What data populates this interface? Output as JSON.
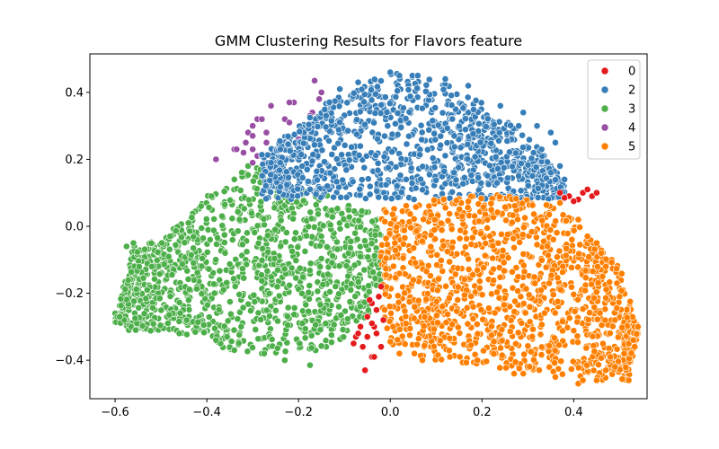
{
  "chart_data": {
    "type": "scatter",
    "title": "GMM Clustering Results for Flavors feature",
    "xlabel": "",
    "ylabel": "",
    "xlim": [
      -0.655,
      0.56
    ],
    "ylim": [
      -0.515,
      0.515
    ],
    "xticks": [
      -0.6,
      -0.4,
      -0.2,
      0.0,
      0.2,
      0.4
    ],
    "xtick_labels": [
      "−0.6",
      "−0.4",
      "−0.2",
      "0.0",
      "0.2",
      "0.4"
    ],
    "yticks": [
      -0.4,
      -0.2,
      0.0,
      0.2,
      0.4
    ],
    "ytick_labels": [
      "−0.4",
      "−0.2",
      "0.0",
      "0.2",
      "0.4"
    ],
    "grid": false,
    "legend": {
      "placement": "top-right",
      "entries": [
        "0",
        "2",
        "3",
        "4",
        "5"
      ]
    },
    "series": [
      {
        "name": "0",
        "color": "#e41a1c",
        "points": [
          [
            -0.055,
            -0.43
          ],
          [
            -0.04,
            -0.39
          ],
          [
            -0.035,
            -0.39
          ],
          [
            -0.02,
            -0.36
          ],
          [
            -0.06,
            -0.36
          ],
          [
            -0.075,
            -0.33
          ],
          [
            -0.035,
            -0.3
          ],
          [
            -0.04,
            -0.29
          ],
          [
            -0.05,
            -0.27
          ],
          [
            -0.03,
            -0.25
          ],
          [
            -0.04,
            -0.23
          ],
          [
            -0.025,
            -0.21
          ],
          [
            -0.045,
            -0.22
          ],
          [
            -0.065,
            -0.3
          ],
          [
            -0.03,
            -0.32
          ],
          [
            -0.08,
            -0.35
          ],
          [
            -0.015,
            -0.28
          ],
          [
            -0.02,
            -0.18
          ],
          [
            -0.05,
            -0.33
          ],
          [
            -0.07,
            -0.32
          ],
          [
            0.37,
            0.1
          ],
          [
            0.39,
            0.09
          ],
          [
            0.41,
            0.08
          ],
          [
            0.42,
            0.1
          ],
          [
            0.44,
            0.09
          ],
          [
            0.45,
            0.1
          ],
          [
            0.43,
            0.11
          ],
          [
            0.38,
            0.085
          ],
          [
            0.4,
            0.075
          ]
        ]
      },
      {
        "name": "2",
        "color": "#377eb8",
        "region": {
          "x_range": [
            -0.28,
            0.38
          ],
          "y_top_curve": [
            [
              -0.28,
              0.22
            ],
            [
              -0.2,
              0.3
            ],
            [
              -0.15,
              0.36
            ],
            [
              -0.05,
              0.43
            ],
            [
              0.0,
              0.46
            ],
            [
              0.1,
              0.44
            ],
            [
              0.2,
              0.37
            ],
            [
              0.3,
              0.27
            ],
            [
              0.36,
              0.17
            ],
            [
              0.38,
              0.12
            ]
          ],
          "y_bottom": 0.08,
          "count": 1100,
          "seed": 202
        },
        "points": [
          [
            0.0,
            0.46
          ],
          [
            0.02,
            0.45
          ],
          [
            0.12,
            0.44
          ],
          [
            0.17,
            0.42
          ],
          [
            0.24,
            0.36
          ],
          [
            0.29,
            0.34
          ],
          [
            0.32,
            0.3
          ],
          [
            0.35,
            0.28
          ],
          [
            0.36,
            0.25
          ],
          [
            0.33,
            0.23
          ],
          [
            0.37,
            0.18
          ],
          [
            0.35,
            0.16
          ],
          [
            0.38,
            0.14
          ],
          [
            0.31,
            0.15
          ],
          [
            -0.14,
            0.33
          ],
          [
            -0.11,
            0.41
          ],
          [
            -0.07,
            0.43
          ],
          [
            0.06,
            0.45
          ],
          [
            0.28,
            0.3
          ],
          [
            -0.24,
            0.19
          ],
          [
            -0.26,
            0.19
          ]
        ]
      },
      {
        "name": "3",
        "color": "#4daf4a",
        "region": {
          "x_range": [
            -0.6,
            -0.02
          ],
          "y_top_curve": [
            [
              -0.6,
              -0.28
            ],
            [
              -0.56,
              -0.06
            ],
            [
              -0.5,
              -0.04
            ],
            [
              -0.45,
              0.02
            ],
            [
              -0.4,
              0.09
            ],
            [
              -0.35,
              0.14
            ],
            [
              -0.3,
              0.18
            ],
            [
              -0.2,
              0.13
            ],
            [
              -0.1,
              0.07
            ],
            [
              -0.02,
              0.03
            ]
          ],
          "y_bottom_curve": [
            [
              -0.6,
              -0.29
            ],
            [
              -0.55,
              -0.31
            ],
            [
              -0.45,
              -0.32
            ],
            [
              -0.35,
              -0.37
            ],
            [
              -0.25,
              -0.38
            ],
            [
              -0.15,
              -0.37
            ],
            [
              -0.1,
              -0.33
            ],
            [
              -0.05,
              -0.27
            ],
            [
              -0.02,
              -0.18
            ]
          ],
          "count": 1250,
          "seed": 303
        },
        "points": [
          [
            -0.6,
            -0.26
          ],
          [
            -0.595,
            -0.27
          ],
          [
            -0.58,
            -0.28
          ],
          [
            -0.57,
            -0.31
          ],
          [
            -0.565,
            -0.3
          ],
          [
            -0.555,
            -0.31
          ],
          [
            -0.59,
            -0.27
          ],
          [
            -0.575,
            -0.06
          ],
          [
            -0.56,
            -0.05
          ],
          [
            -0.37,
            -0.35
          ],
          [
            -0.34,
            -0.37
          ],
          [
            -0.28,
            -0.38
          ],
          [
            -0.275,
            -0.38
          ],
          [
            -0.23,
            -0.4
          ],
          [
            -0.175,
            -0.415
          ],
          [
            -0.31,
            0.18
          ],
          [
            -0.34,
            0.14
          ],
          [
            -0.39,
            0.09
          ],
          [
            -0.44,
            0.01
          ],
          [
            -0.48,
            -0.03
          ],
          [
            -0.52,
            -0.12
          ],
          [
            -0.53,
            -0.19
          ],
          [
            -0.38,
            -0.34
          ],
          [
            -0.46,
            -0.32
          ]
        ]
      },
      {
        "name": "4",
        "color": "#984ea3",
        "points": [
          [
            -0.165,
            0.435
          ],
          [
            -0.15,
            0.4
          ],
          [
            -0.155,
            0.38
          ],
          [
            -0.21,
            0.37
          ],
          [
            -0.22,
            0.37
          ],
          [
            -0.26,
            0.36
          ],
          [
            -0.29,
            0.32
          ],
          [
            -0.28,
            0.32
          ],
          [
            -0.23,
            0.32
          ],
          [
            -0.22,
            0.31
          ],
          [
            -0.17,
            0.34
          ],
          [
            -0.175,
            0.33
          ],
          [
            -0.16,
            0.32
          ],
          [
            -0.3,
            0.3
          ],
          [
            -0.31,
            0.28
          ],
          [
            -0.27,
            0.28
          ],
          [
            -0.19,
            0.27
          ],
          [
            -0.3,
            0.27
          ],
          [
            -0.315,
            0.25
          ],
          [
            -0.27,
            0.25
          ],
          [
            -0.23,
            0.25
          ],
          [
            -0.22,
            0.24
          ],
          [
            -0.34,
            0.23
          ],
          [
            -0.335,
            0.23
          ],
          [
            -0.3,
            0.23
          ],
          [
            -0.25,
            0.22
          ],
          [
            -0.29,
            0.21
          ],
          [
            -0.28,
            0.21
          ],
          [
            -0.26,
            0.21
          ],
          [
            -0.3,
            0.19
          ],
          [
            -0.27,
            0.19
          ],
          [
            -0.38,
            0.2
          ],
          [
            -0.18,
            0.29
          ],
          [
            -0.165,
            0.3
          ],
          [
            -0.2,
            0.26
          ],
          [
            -0.32,
            0.22
          ]
        ]
      },
      {
        "name": "5",
        "color": "#ff7f00",
        "region": {
          "x_range": [
            -0.02,
            0.54
          ],
          "y_top_curve": [
            [
              -0.02,
              0.05
            ],
            [
              0.1,
              0.08
            ],
            [
              0.2,
              0.1
            ],
            [
              0.3,
              0.08
            ],
            [
              0.35,
              0.07
            ],
            [
              0.4,
              0.02
            ],
            [
              0.45,
              -0.05
            ],
            [
              0.5,
              -0.12
            ],
            [
              0.54,
              -0.3
            ]
          ],
          "y_bottom_curve": [
            [
              -0.02,
              -0.23
            ],
            [
              0.0,
              -0.36
            ],
            [
              0.1,
              -0.4
            ],
            [
              0.2,
              -0.42
            ],
            [
              0.3,
              -0.43
            ],
            [
              0.4,
              -0.45
            ],
            [
              0.45,
              -0.46
            ],
            [
              0.52,
              -0.46
            ],
            [
              0.54,
              -0.32
            ]
          ],
          "count": 1250,
          "seed": 505
        },
        "points": [
          [
            0.02,
            -0.38
          ],
          [
            0.07,
            -0.4
          ],
          [
            0.13,
            -0.39
          ],
          [
            0.27,
            -0.44
          ],
          [
            0.36,
            -0.45
          ],
          [
            0.41,
            -0.47
          ],
          [
            0.42,
            -0.46
          ],
          [
            0.45,
            -0.46
          ],
          [
            0.47,
            -0.43
          ],
          [
            0.49,
            -0.42
          ],
          [
            0.52,
            -0.46
          ],
          [
            0.51,
            -0.38
          ],
          [
            0.52,
            -0.35
          ],
          [
            0.53,
            -0.34
          ],
          [
            0.54,
            -0.3
          ],
          [
            0.49,
            -0.28
          ],
          [
            0.5,
            -0.21
          ],
          [
            0.47,
            -0.12
          ],
          [
            0.46,
            -0.08
          ],
          [
            0.45,
            -0.05
          ],
          [
            0.41,
            0.02
          ],
          [
            0.37,
            0.07
          ],
          [
            0.43,
            -0.03
          ],
          [
            0.48,
            -0.39
          ],
          [
            0.29,
            -0.44
          ],
          [
            0.19,
            -0.4
          ]
        ]
      }
    ]
  }
}
